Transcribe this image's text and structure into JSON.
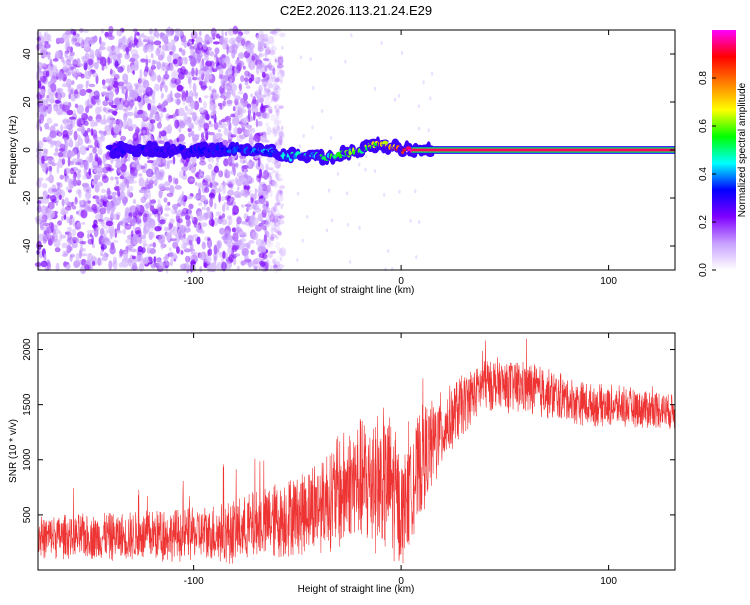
{
  "chart_data": [
    {
      "type": "heatmap",
      "title": "C2E2.2026.113.21.24.E29",
      "xlabel": "Height of straight line (km)",
      "ylabel": "Frequency (Hz)",
      "xlim": [
        -175,
        132
      ],
      "ylim": [
        -50,
        50
      ],
      "x_ticks": [
        -100,
        0,
        100
      ],
      "y_ticks": [
        -40,
        -20,
        0,
        20,
        40
      ],
      "colorbar": {
        "label": "Normalized spectral amplitude",
        "range": [
          0,
          1
        ],
        "ticks": [
          0.0,
          0.2,
          0.4,
          0.6,
          0.8
        ],
        "colors": [
          "#ffffff",
          "#c8a0ff",
          "#8000ff",
          "#0000ff",
          "#00ffff",
          "#00ff00",
          "#ffff00",
          "#ff8000",
          "#ff0000",
          "#ff00ff"
        ]
      },
      "features": {
        "noise_region_x": [
          -175,
          -65
        ],
        "ridge": [
          {
            "x": -140,
            "y": 0,
            "amp": 0.3
          },
          {
            "x": -110,
            "y": 0,
            "amp": 0.3
          },
          {
            "x": -80,
            "y": 0,
            "amp": 0.35
          },
          {
            "x": -65,
            "y": 0,
            "amp": 0.4
          },
          {
            "x": -55,
            "y": -3,
            "amp": 0.45
          },
          {
            "x": -45,
            "y": -2,
            "amp": 0.45
          },
          {
            "x": -38,
            "y": -3,
            "amp": 0.5
          },
          {
            "x": -30,
            "y": -2,
            "amp": 0.55
          },
          {
            "x": -20,
            "y": 0,
            "amp": 0.6
          },
          {
            "x": -10,
            "y": 3,
            "amp": 0.7
          },
          {
            "x": 0,
            "y": 0,
            "amp": 0.85
          },
          {
            "x": 10,
            "y": 0,
            "amp": 0.95
          },
          {
            "x": 132,
            "y": 0,
            "amp": 0.95
          }
        ]
      }
    },
    {
      "type": "line",
      "xlabel": "Height of straight line (km)",
      "ylabel": "SNR (10 * v/v)",
      "xlim": [
        -175,
        132
      ],
      "ylim": [
        0,
        2150
      ],
      "x_ticks": [
        -100,
        0,
        100
      ],
      "y_ticks": [
        500,
        1000,
        1500,
        2000
      ],
      "color": "#ee3333",
      "envelope": [
        {
          "x": -175,
          "mean": 300,
          "spread": 200
        },
        {
          "x": -140,
          "mean": 300,
          "spread": 220
        },
        {
          "x": -100,
          "mean": 320,
          "spread": 250
        },
        {
          "x": -80,
          "mean": 350,
          "spread": 300
        },
        {
          "x": -60,
          "mean": 450,
          "spread": 350
        },
        {
          "x": -40,
          "mean": 600,
          "spread": 450
        },
        {
          "x": -20,
          "mean": 800,
          "spread": 600
        },
        {
          "x": -5,
          "mean": 800,
          "spread": 700
        },
        {
          "x": 0,
          "mean": 500,
          "spread": 500
        },
        {
          "x": 10,
          "mean": 1000,
          "spread": 500
        },
        {
          "x": 25,
          "mean": 1400,
          "spread": 300
        },
        {
          "x": 40,
          "mean": 1700,
          "spread": 250
        },
        {
          "x": 60,
          "mean": 1650,
          "spread": 250
        },
        {
          "x": 90,
          "mean": 1500,
          "spread": 200
        },
        {
          "x": 132,
          "mean": 1450,
          "spread": 180
        }
      ]
    }
  ]
}
